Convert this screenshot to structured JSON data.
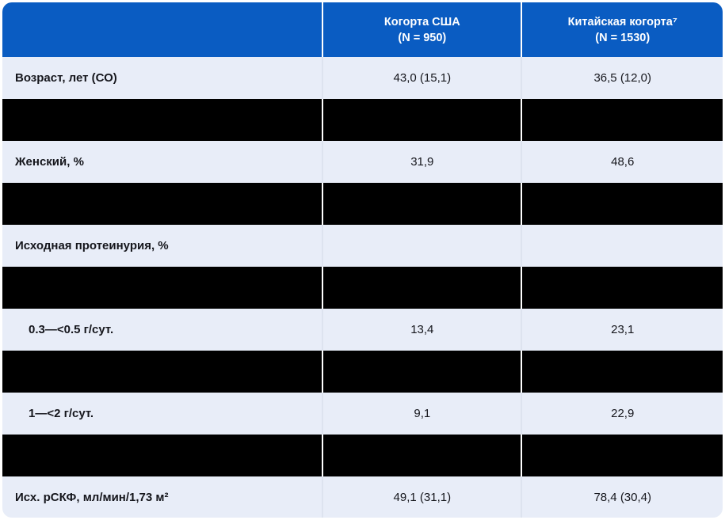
{
  "colors": {
    "header_blue": "#0A5CC2",
    "row_light": "#E8EDF8",
    "redacted": "#000000",
    "text_dark": "#15161C",
    "header_text": "#FFFFFF"
  },
  "table": {
    "columns": [
      {
        "title": "Когорта США",
        "n": "(N = 950)"
      },
      {
        "title": "Китайская когорта⁷",
        "n": "(N = 1530)"
      }
    ],
    "rows": [
      {
        "type": "data",
        "label": "Возраст, лет (СО)",
        "us": "43,0 (15,1)",
        "cn": "36,5 (12,0)",
        "indent": false
      },
      {
        "type": "redacted"
      },
      {
        "type": "data",
        "label": "Женский, %",
        "us": "31,9",
        "cn": "48,6",
        "indent": false
      },
      {
        "type": "redacted"
      },
      {
        "type": "data",
        "label": "Исходная протеинурия, %",
        "us": "",
        "cn": "",
        "indent": false
      },
      {
        "type": "redacted"
      },
      {
        "type": "data",
        "label": "0.3—<0.5 г/сут.",
        "us": "13,4",
        "cn": "23,1",
        "indent": true
      },
      {
        "type": "redacted"
      },
      {
        "type": "data",
        "label": "1—<2 г/сут.",
        "us": "9,1",
        "cn": "22,9",
        "indent": true
      },
      {
        "type": "redacted"
      },
      {
        "type": "data",
        "label": "Исх. рСКФ, мл/мин/1,73 м²",
        "us": "49,1 (31,1)",
        "cn": "78,4 (30,4)",
        "indent": false
      },
      {
        "type": "redacted",
        "partial": true
      }
    ]
  },
  "chart_data": {
    "type": "table",
    "title": "",
    "columns": [
      "",
      "Когорта США (N = 950)",
      "Китайская когорта⁷ (N = 1530)"
    ],
    "rows": [
      [
        "Возраст, лет (СО)",
        "43,0 (15,1)",
        "36,5 (12,0)"
      ],
      [
        "[REDACTED]",
        "[REDACTED]",
        "[REDACTED]"
      ],
      [
        "Женский, %",
        "31,9",
        "48,6"
      ],
      [
        "[REDACTED]",
        "[REDACTED]",
        "[REDACTED]"
      ],
      [
        "Исходная протеинурия, %",
        "",
        ""
      ],
      [
        "[REDACTED]",
        "[REDACTED]",
        "[REDACTED]"
      ],
      [
        "0.3—<0.5 г/сут.",
        "13,4",
        "23,1"
      ],
      [
        "[REDACTED]",
        "[REDACTED]",
        "[REDACTED]"
      ],
      [
        "1—<2 г/сут.",
        "9,1",
        "22,9"
      ],
      [
        "[REDACTED]",
        "[REDACTED]",
        "[REDACTED]"
      ],
      [
        "Исх. рСКФ, мл/мин/1,73 м²",
        "49,1 (31,1)",
        "78,4 (30,4)"
      ]
    ]
  }
}
